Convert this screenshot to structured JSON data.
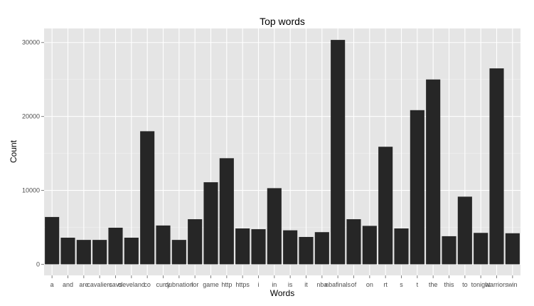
{
  "chart_data": {
    "type": "bar",
    "title": "Top words",
    "xlabel": "Words",
    "ylabel": "Count",
    "categories": [
      "a",
      "and",
      "are",
      "cavaliers",
      "cavs",
      "cleveland",
      "co",
      "curry",
      "dubnation",
      "for",
      "game",
      "http",
      "https",
      "i",
      "in",
      "is",
      "it",
      "nba",
      "nbafinals",
      "of",
      "on",
      "rt",
      "s",
      "t",
      "the",
      "this",
      "to",
      "tonight",
      "warriors",
      "win"
    ],
    "values": [
      6400,
      3600,
      3300,
      3300,
      4950,
      3600,
      18000,
      5250,
      3300,
      6100,
      11100,
      14350,
      4850,
      4750,
      10300,
      4600,
      3700,
      4350,
      30350,
      6100,
      5200,
      15900,
      4850,
      20850,
      25000,
      3800,
      9150,
      4250,
      26500,
      4200
    ],
    "yticks": [
      0,
      10000,
      20000,
      30000
    ],
    "ylim": [
      -1500,
      31900
    ],
    "grid": true,
    "colors": {
      "bar": "#262626",
      "panel": "#e5e5e5",
      "grid_major": "#ffffff",
      "grid_minor": "#f2f2f2"
    }
  }
}
